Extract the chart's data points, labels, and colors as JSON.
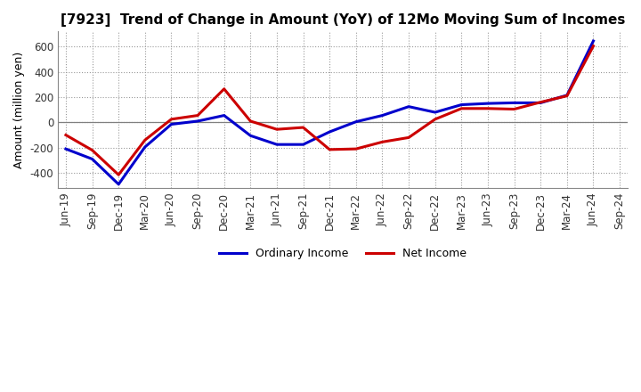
{
  "title": "[7923]  Trend of Change in Amount (YoY) of 12Mo Moving Sum of Incomes",
  "ylabel": "Amount (million yen)",
  "x_labels": [
    "Jun-19",
    "Sep-19",
    "Dec-19",
    "Mar-20",
    "Jun-20",
    "Sep-20",
    "Dec-20",
    "Mar-21",
    "Jun-21",
    "Sep-21",
    "Dec-21",
    "Mar-22",
    "Jun-22",
    "Sep-22",
    "Dec-22",
    "Mar-23",
    "Jun-23",
    "Sep-23",
    "Dec-23",
    "Mar-24",
    "Jun-24",
    "Sep-24"
  ],
  "ordinary_income": [
    -210,
    -290,
    -490,
    -195,
    -15,
    10,
    55,
    -105,
    -175,
    -175,
    -75,
    5,
    55,
    125,
    80,
    140,
    150,
    155,
    155,
    215,
    645,
    null
  ],
  "net_income": [
    -100,
    -220,
    -415,
    -140,
    25,
    55,
    265,
    10,
    -55,
    -40,
    -215,
    -210,
    -155,
    -120,
    25,
    110,
    110,
    105,
    160,
    210,
    605,
    null
  ],
  "ordinary_color": "#0000cc",
  "net_color": "#cc0000",
  "ylim": [
    -520,
    720
  ],
  "yticks": [
    -400,
    -200,
    0,
    200,
    400,
    600
  ],
  "bg_color": "#ffffff",
  "grid_color": "#999999",
  "line_width": 2.2,
  "title_fontsize": 11,
  "axis_fontsize": 8.5,
  "ylabel_fontsize": 9
}
